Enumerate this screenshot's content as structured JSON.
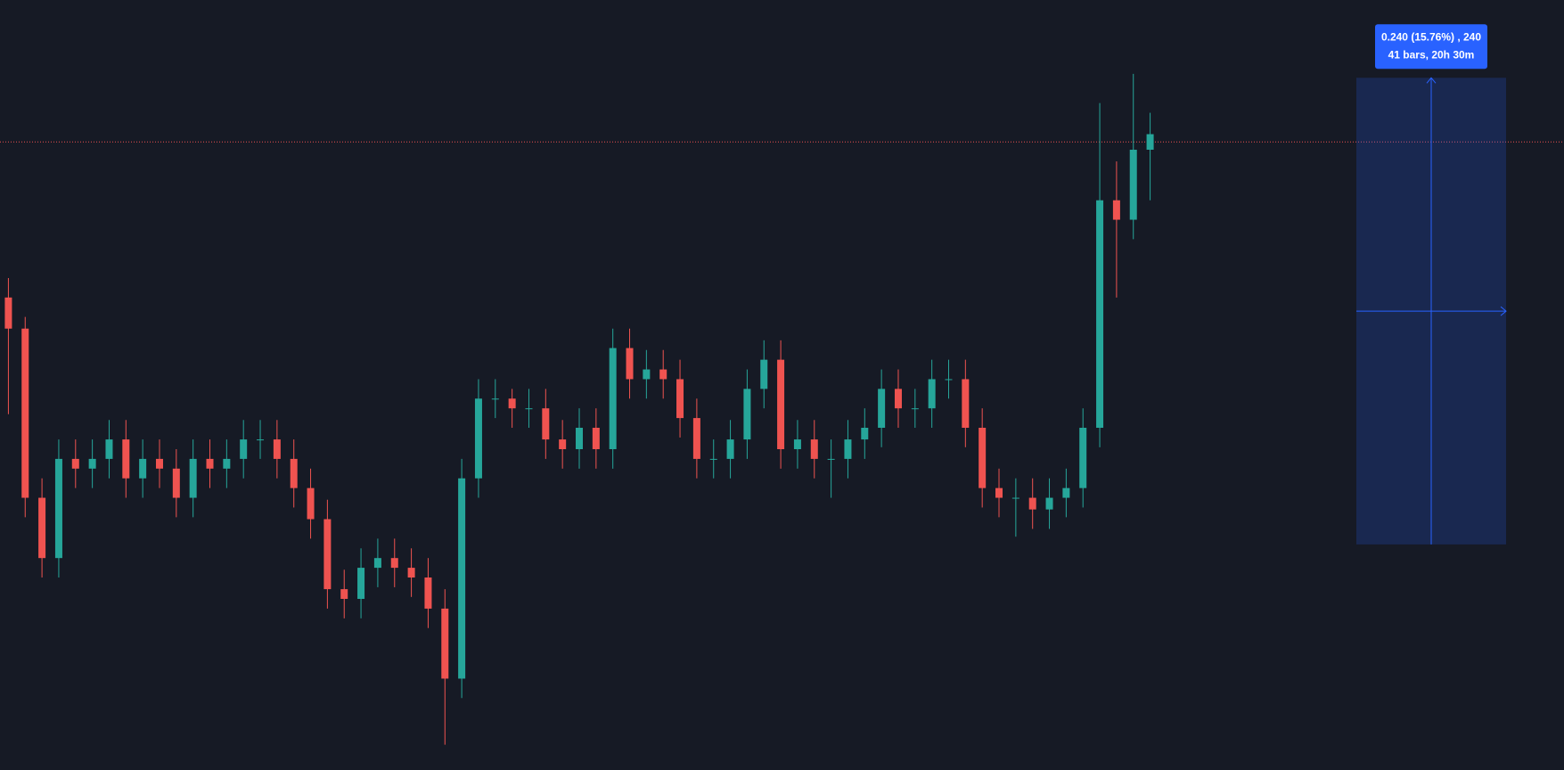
{
  "chart_data": {
    "type": "candlestick",
    "up_color": "#26a69a",
    "down_color": "#ef5350",
    "ylim": [
      1.407,
      1.803
    ],
    "last_price": 1.73,
    "measure": {
      "from": 1.523,
      "to": 1.763,
      "label_line1": "0.240 (15.76%) , 240",
      "label_line2": "41 bars, 20h 30m",
      "color": "#2962ff"
    },
    "candles": [
      [
        1.65,
        1.66,
        1.59,
        1.634
      ],
      [
        1.634,
        1.64,
        1.537,
        1.547
      ],
      [
        1.547,
        1.557,
        1.506,
        1.516
      ],
      [
        1.516,
        1.577,
        1.506,
        1.567
      ],
      [
        1.567,
        1.577,
        1.552,
        1.562
      ],
      [
        1.562,
        1.577,
        1.552,
        1.567
      ],
      [
        1.567,
        1.587,
        1.557,
        1.577
      ],
      [
        1.577,
        1.587,
        1.547,
        1.557
      ],
      [
        1.557,
        1.577,
        1.547,
        1.567
      ],
      [
        1.567,
        1.577,
        1.552,
        1.562
      ],
      [
        1.562,
        1.572,
        1.537,
        1.547
      ],
      [
        1.547,
        1.577,
        1.537,
        1.567
      ],
      [
        1.567,
        1.577,
        1.552,
        1.562
      ],
      [
        1.562,
        1.577,
        1.552,
        1.567
      ],
      [
        1.567,
        1.587,
        1.557,
        1.577
      ],
      [
        1.577,
        1.587,
        1.567,
        1.577
      ],
      [
        1.577,
        1.587,
        1.557,
        1.567
      ],
      [
        1.567,
        1.577,
        1.542,
        1.552
      ],
      [
        1.552,
        1.562,
        1.526,
        1.536
      ],
      [
        1.536,
        1.546,
        1.49,
        1.5
      ],
      [
        1.5,
        1.51,
        1.485,
        1.495
      ],
      [
        1.495,
        1.521,
        1.485,
        1.511
      ],
      [
        1.511,
        1.526,
        1.501,
        1.516
      ],
      [
        1.516,
        1.526,
        1.501,
        1.511
      ],
      [
        1.511,
        1.521,
        1.496,
        1.506
      ],
      [
        1.506,
        1.516,
        1.48,
        1.49
      ],
      [
        1.49,
        1.5,
        1.42,
        1.454
      ],
      [
        1.454,
        1.567,
        1.444,
        1.557
      ],
      [
        1.557,
        1.608,
        1.547,
        1.598
      ],
      [
        1.598,
        1.608,
        1.588,
        1.598
      ],
      [
        1.598,
        1.603,
        1.583,
        1.593
      ],
      [
        1.593,
        1.603,
        1.583,
        1.593
      ],
      [
        1.593,
        1.603,
        1.567,
        1.577
      ],
      [
        1.577,
        1.587,
        1.562,
        1.572
      ],
      [
        1.572,
        1.593,
        1.562,
        1.583
      ],
      [
        1.583,
        1.593,
        1.562,
        1.572
      ],
      [
        1.572,
        1.634,
        1.562,
        1.624
      ],
      [
        1.624,
        1.634,
        1.598,
        1.608
      ],
      [
        1.608,
        1.623,
        1.598,
        1.613
      ],
      [
        1.613,
        1.623,
        1.598,
        1.608
      ],
      [
        1.608,
        1.618,
        1.578,
        1.588
      ],
      [
        1.588,
        1.598,
        1.557,
        1.567
      ],
      [
        1.567,
        1.577,
        1.557,
        1.567
      ],
      [
        1.567,
        1.587,
        1.557,
        1.577
      ],
      [
        1.577,
        1.613,
        1.567,
        1.603
      ],
      [
        1.603,
        1.628,
        1.593,
        1.618
      ],
      [
        1.618,
        1.628,
        1.562,
        1.572
      ],
      [
        1.572,
        1.587,
        1.562,
        1.577
      ],
      [
        1.577,
        1.587,
        1.557,
        1.567
      ],
      [
        1.567,
        1.577,
        1.547,
        1.567
      ],
      [
        1.567,
        1.587,
        1.557,
        1.577
      ],
      [
        1.577,
        1.593,
        1.567,
        1.583
      ],
      [
        1.583,
        1.613,
        1.573,
        1.603
      ],
      [
        1.603,
        1.613,
        1.583,
        1.593
      ],
      [
        1.593,
        1.603,
        1.583,
        1.593
      ],
      [
        1.593,
        1.618,
        1.583,
        1.608
      ],
      [
        1.608,
        1.618,
        1.598,
        1.608
      ],
      [
        1.608,
        1.618,
        1.573,
        1.583
      ],
      [
        1.583,
        1.593,
        1.542,
        1.552
      ],
      [
        1.552,
        1.562,
        1.537,
        1.547
      ],
      [
        1.547,
        1.557,
        1.527,
        1.547
      ],
      [
        1.547,
        1.557,
        1.531,
        1.541
      ],
      [
        1.541,
        1.557,
        1.531,
        1.547
      ],
      [
        1.547,
        1.562,
        1.537,
        1.552
      ],
      [
        1.552,
        1.593,
        1.542,
        1.583
      ],
      [
        1.583,
        1.75,
        1.573,
        1.7
      ],
      [
        1.7,
        1.72,
        1.65,
        1.69
      ],
      [
        1.69,
        1.765,
        1.68,
        1.726
      ],
      [
        1.726,
        1.745,
        1.7,
        1.734
      ]
    ]
  }
}
